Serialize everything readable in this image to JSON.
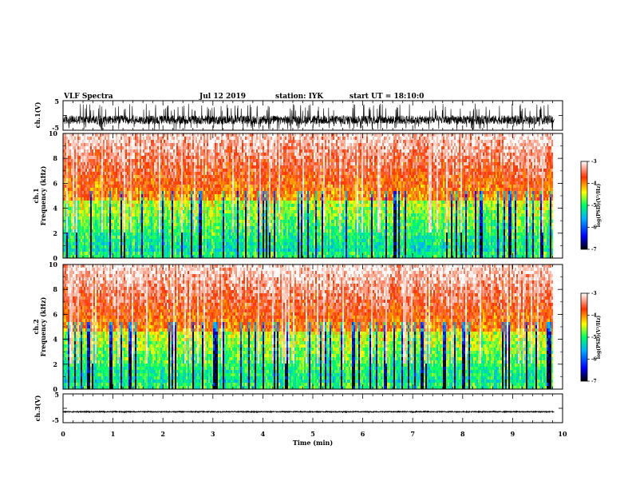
{
  "header": {
    "title": "VLF Spectra",
    "date": "Jul 12 2019",
    "station": "station: IYK",
    "start": "start UT = 18:10:0"
  },
  "chart_data": [
    {
      "type": "line",
      "ylabel": "ch.1(V)",
      "xlim": [
        0,
        10
      ],
      "ylim": [
        -5,
        5
      ],
      "yticks": [
        "5",
        "-5"
      ],
      "duration_min": 9.83,
      "baseline_v": -1.5,
      "typical_range_v": [
        -3,
        0
      ],
      "spike_range_v": [
        -5,
        4
      ],
      "line_color": "#000000"
    },
    {
      "type": "heatmap",
      "ylabel_channel": "ch.1",
      "ylabel": "Frequency (kHz)",
      "xlim": [
        0,
        10
      ],
      "ylim": [
        0,
        10
      ],
      "yticks": [
        "0",
        "2",
        "4",
        "6",
        "8",
        "10"
      ],
      "colorbar": {
        "label": "log(PSD)(V²/Hz)",
        "range": [
          -7,
          -3
        ],
        "ticks": [
          "-3",
          "-4",
          "-5",
          "-6",
          "-7"
        ],
        "colors": [
          "#000000",
          "#0000ff",
          "#00b0ff",
          "#00ff66",
          "#ffff00",
          "#ff3300",
          "#ffffff"
        ]
      }
    },
    {
      "type": "heatmap",
      "ylabel_channel": "ch.2",
      "ylabel": "Frequency (kHz)",
      "xlim": [
        0,
        10
      ],
      "ylim": [
        0,
        10
      ],
      "yticks": [
        "0",
        "2",
        "4",
        "6",
        "8",
        "10"
      ],
      "colorbar": {
        "label": "log(PSD)(V²/Hz)",
        "range": [
          -7,
          -3
        ],
        "ticks": [
          "-3",
          "-4",
          "-5",
          "-6",
          "-7"
        ],
        "colors": [
          "#000000",
          "#0000ff",
          "#00b0ff",
          "#00ff66",
          "#ffff00",
          "#ff3300",
          "#ffffff"
        ]
      }
    },
    {
      "type": "line",
      "ylabel": "ch.3(V)",
      "xlabel": "Time (min)",
      "xlim": [
        0,
        10
      ],
      "ylim": [
        -5,
        5
      ],
      "yticks": [
        "5",
        "-5"
      ],
      "xticks": [
        "0",
        "1",
        "2",
        "3",
        "4",
        "5",
        "6",
        "7",
        "8",
        "9",
        "10"
      ],
      "duration_min": 9.83,
      "baseline_v": -1.2,
      "line_color": "#000000"
    }
  ]
}
